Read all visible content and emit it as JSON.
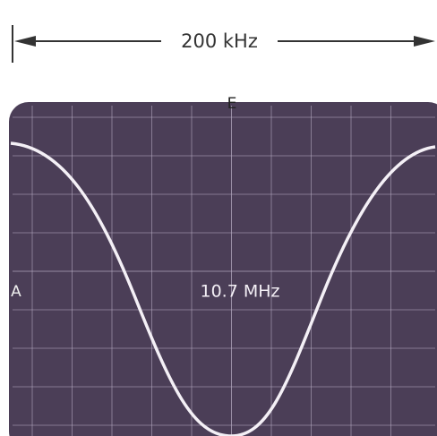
{
  "header": {
    "span": "200 kHz"
  },
  "labels": {
    "top": "E",
    "left": "A",
    "center": "10.7 MHz"
  }
}
